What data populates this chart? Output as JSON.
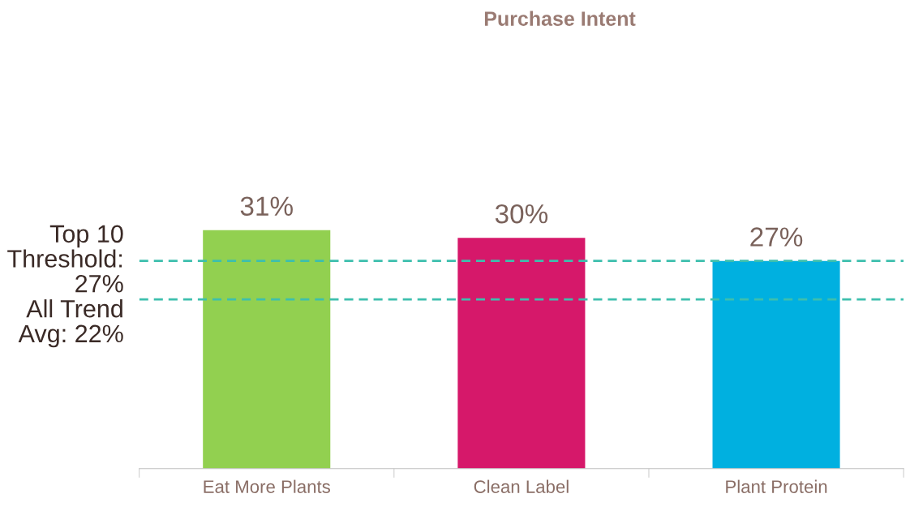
{
  "chart_data": {
    "type": "bar",
    "title": "Purchase Intent",
    "categories": [
      "Eat More Plants",
      "Clean Label",
      "Plant Protein"
    ],
    "values": [
      31,
      30,
      27
    ],
    "colors": [
      "#92d050",
      "#d6186a",
      "#00b0e0"
    ],
    "data_labels": true,
    "value_labels": [
      "31%",
      "30%",
      "27%"
    ],
    "tick_labels": "x",
    "grid": false,
    "legend": false,
    "ref_lines": [
      {
        "axis": "y",
        "value": 27,
        "label": "Top 10\nThreshold:\n27%",
        "color": "#3dbfad",
        "line_style": "dashed"
      },
      {
        "axis": "y",
        "value": 22,
        "label": "All Trend\nAvg: 22%",
        "color": "#3dbfad",
        "line_style": "dashed"
      }
    ]
  }
}
